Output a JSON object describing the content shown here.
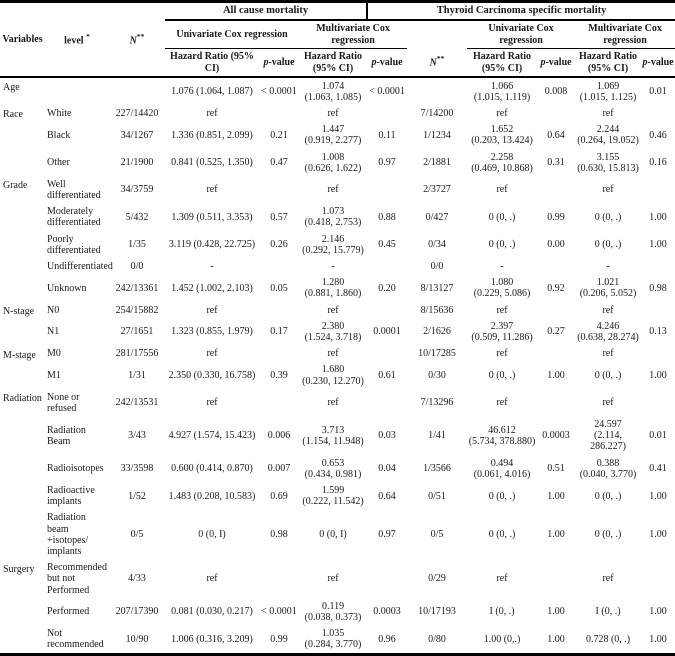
{
  "groups": {
    "all_cause": "All cause mortality",
    "thyroid": "Thyroid Carcinoma specific mortality"
  },
  "headers": {
    "variables": "Variables",
    "level": "level ",
    "level_sup": "*",
    "n": "N",
    "n_sup": "**",
    "univariate": "Univariate Cox regression",
    "multivariate": "Multivariate Cox regression",
    "hazard_ratio": "Hazard Ratio (95% CI)",
    "p_italic": "p",
    "p_rest": "-value"
  },
  "rows": [
    {
      "variable": "Age",
      "var_rowspan": 1,
      "level": "",
      "n1": "",
      "hr1": "1.076 (1.064, 1.087)",
      "p1": "< 0.0001",
      "hr2": "1.074\n(1.063, 1.085)",
      "p2": "< 0.0001",
      "n2": "",
      "hr3": "1.066\n(1.015, 1.119)",
      "p3": "0.008",
      "hr4": "1.069\n(1.015, 1.125)",
      "p4": "0.01"
    },
    {
      "variable": "Race",
      "var_rowspan": 3,
      "level": "White",
      "n1": "227/14420",
      "hr1": "ref",
      "p1": "",
      "hr2": "ref",
      "p2": "",
      "n2": "7/14200",
      "hr3": "ref",
      "p3": "",
      "hr4": "ref",
      "p4": ""
    },
    {
      "variable": null,
      "level": "Black",
      "n1": "34/1267",
      "hr1": "1.336 (0.851, 2.099)",
      "p1": "0.21",
      "hr2": "1.447\n(0.919, 2.277)",
      "p2": "0.11",
      "n2": "1/1234",
      "hr3": "1.652\n(0.203, 13.424)",
      "p3": "0.64",
      "hr4": "2.244\n(0.264, 19.052)",
      "p4": "0.46"
    },
    {
      "variable": null,
      "level": "Other",
      "n1": "21/1900",
      "hr1": "0.841 (0.525, 1.350)",
      "p1": "0.47",
      "hr2": "1.008\n(0.626, 1.622)",
      "p2": "0.97",
      "n2": "2/1881",
      "hr3": "2.258\n(0.469, 10.868)",
      "p3": "0.31",
      "hr4": "3.155\n(0.630, 15.813)",
      "p4": "0.16"
    },
    {
      "variable": "Grade",
      "var_rowspan": 5,
      "level": "Well\ndifferentiated",
      "n1": "34/3759",
      "hr1": "ref",
      "p1": "",
      "hr2": "ref",
      "p2": "",
      "n2": "2/3727",
      "hr3": "ref",
      "p3": "",
      "hr4": "ref",
      "p4": ""
    },
    {
      "variable": null,
      "level": "Moderately\ndifferentiated",
      "n1": "5/432",
      "hr1": "1.309 (0.511, 3.353)",
      "p1": "0.57",
      "hr2": "1.073\n(0.418, 2.753)",
      "p2": "0.88",
      "n2": "0/427",
      "hr3": "0 (0, .)",
      "p3": "0.99",
      "hr4": "0 (0, .)",
      "p4": "1.00"
    },
    {
      "variable": null,
      "level": "Poorly\ndifferentiated",
      "n1": "1/35",
      "hr1": "3.119 (0.428, 22.725)",
      "p1": "0.26",
      "hr2": "2.146\n(0.292, 15.779)",
      "p2": "0.45",
      "n2": "0/34",
      "hr3": "0 (0, .)",
      "p3": "0.00",
      "hr4": "0 (0, .)",
      "p4": "1.00"
    },
    {
      "variable": null,
      "level": "Undifferentiated",
      "n1": "0/0",
      "hr1": "-",
      "p1": "",
      "hr2": "-",
      "p2": "",
      "n2": "0/0",
      "hr3": "-",
      "p3": "",
      "hr4": "-",
      "p4": ""
    },
    {
      "variable": null,
      "level": "Unknown",
      "n1": "242/13361",
      "hr1": "1.452 (1.002, 2.103)",
      "p1": "0.05",
      "hr2": "1.280\n(0.881, 1.860)",
      "p2": "0.20",
      "n2": "8/13127",
      "hr3": "1.080\n(0.229, 5.086)",
      "p3": "0.92",
      "hr4": "1.021\n(0.206, 5.052)",
      "p4": "0.98"
    },
    {
      "variable": "N-stage",
      "var_rowspan": 2,
      "level": "N0",
      "n1": "254/15882",
      "hr1": "ref",
      "p1": "",
      "hr2": "ref",
      "p2": "",
      "n2": "8/15636",
      "hr3": "ref",
      "p3": "",
      "hr4": "ref",
      "p4": ""
    },
    {
      "variable": null,
      "level": "N1",
      "n1": "27/1651",
      "hr1": "1.323 (0.855, 1.979)",
      "p1": "0.17",
      "hr2": "2.380\n(1.524, 3.718)",
      "p2": "0.0001",
      "n2": "2/1626",
      "hr3": "2.397\n(0.509, 11.286)",
      "p3": "0.27",
      "hr4": "4.246\n(0.638, 28.274)",
      "p4": "0.13"
    },
    {
      "variable": "M-stage",
      "var_rowspan": 2,
      "level": "M0",
      "n1": "281/17556",
      "hr1": "ref",
      "p1": "",
      "hr2": "ref",
      "p2": "",
      "n2": "10/17285",
      "hr3": "ref",
      "p3": "",
      "hr4": "ref",
      "p4": ""
    },
    {
      "variable": null,
      "level": "M1",
      "n1": "1/31",
      "hr1": "2.350 (0.330, 16.758)",
      "p1": "0.39",
      "hr2": "1.680\n(0.230, 12.270)",
      "p2": "0.61",
      "n2": "0/30",
      "hr3": "0 (0, .)",
      "p3": "1.00",
      "hr4": "0 (0, .)",
      "p4": "1.00"
    },
    {
      "variable": "Radiation",
      "var_rowspan": 5,
      "level": "None or refused",
      "n1": "242/13531",
      "hr1": "ref",
      "p1": "",
      "hr2": "ref",
      "p2": "",
      "n2": "7/13296",
      "hr3": "ref",
      "p3": "",
      "hr4": "ref",
      "p4": ""
    },
    {
      "variable": null,
      "level": "Radiation Beam",
      "n1": "3/43",
      "hr1": "4.927 (1.574, 15.423)",
      "p1": "0.006",
      "hr2": "3.713\n(1.154, 11.948)",
      "p2": "0.03",
      "n2": "1/41",
      "hr3": "46.612\n(5.734, 378.880)",
      "p3": "0.0003",
      "hr4": "24.597\n(2.114, 286.227)",
      "p4": "0.01"
    },
    {
      "variable": null,
      "level": "Radioisotopes",
      "n1": "33/3598",
      "hr1": "0.600 (0.414, 0.870)",
      "p1": "0.007",
      "hr2": "0.653\n(0.434, 0.981)",
      "p2": "0.04",
      "n2": "1/3566",
      "hr3": "0.494\n(0.061, 4.016)",
      "p3": "0.51",
      "hr4": "0.388\n(0.040, 3.770)",
      "p4": "0.41"
    },
    {
      "variable": null,
      "level": "Radioactive\nimplants",
      "n1": "1/52",
      "hr1": "1.483 (0.208, 10.583)",
      "p1": "0.69",
      "hr2": "1.599\n(0.222, 11.542)",
      "p2": "0.64",
      "n2": "0/51",
      "hr3": "0 (0, .)",
      "p3": "1.00",
      "hr4": "0 (0, .)",
      "p4": "1.00"
    },
    {
      "variable": null,
      "level": "Radiation beam\n+isotopes/\nimplants",
      "n1": "0/5",
      "hr1": "0 (0, I)",
      "p1": "0.98",
      "hr2": "0 (0, I)",
      "p2": "0.97",
      "n2": "0/5",
      "hr3": "0 (0, .)",
      "p3": "1.00",
      "hr4": "0 (0, .)",
      "p4": "1.00"
    },
    {
      "variable": "Surgery",
      "var_rowspan": 3,
      "level": "Recommended\nbut not\nPerformed",
      "n1": "4/33",
      "hr1": "ref",
      "p1": "",
      "hr2": "ref",
      "p2": "",
      "n2": "0/29",
      "hr3": "ref",
      "p3": "",
      "hr4": "ref",
      "p4": ""
    },
    {
      "variable": null,
      "level": "Performed",
      "n1": "207/17390",
      "hr1": "0.081 (0.030, 0.217)",
      "p1": "< 0.0001",
      "hr2": "0.119\n(0.038, 0.373)",
      "p2": "0.0003",
      "n2": "10/17193",
      "hr3": "I (0, .)",
      "p3": "1.00",
      "hr4": "I (0, .)",
      "p4": "1.00"
    },
    {
      "variable": null,
      "level": "Not\nrecommended",
      "n1": "10/90",
      "hr1": "1.006 (0.316, 3.209)",
      "p1": "0.99",
      "hr2": "1.035\n(0.284, 3.770)",
      "p2": "0.96",
      "n2": "0/80",
      "hr3": "1.00 (0,.)",
      "p3": "1.00",
      "hr4": "0.728 (0, .)",
      "p4": "1.00"
    }
  ]
}
